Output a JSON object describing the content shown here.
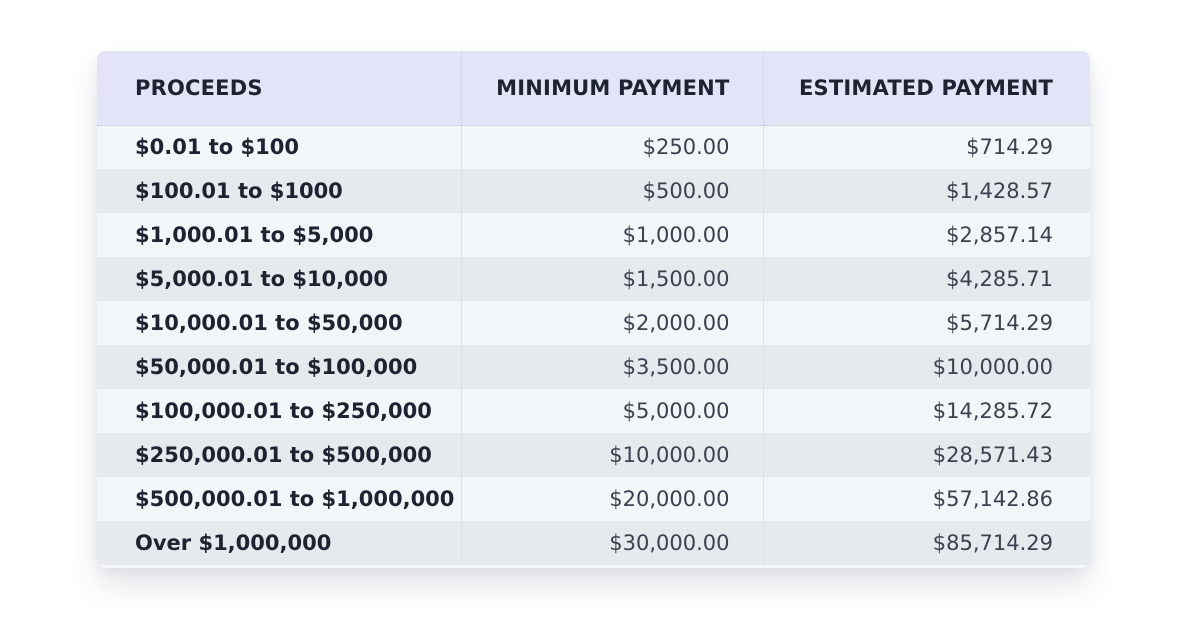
{
  "table": {
    "headers": {
      "proceeds": "PROCEEDS",
      "minimum": "MINIMUM PAYMENT",
      "estimated": "ESTIMATED PAYMENT"
    },
    "rows": [
      {
        "proceeds": "$0.01 to $100",
        "minimum": "$250.00",
        "estimated": "$714.29"
      },
      {
        "proceeds": "$100.01 to $1000",
        "minimum": "$500.00",
        "estimated": "$1,428.57"
      },
      {
        "proceeds": "$1,000.01 to $5,000",
        "minimum": "$1,000.00",
        "estimated": "$2,857.14"
      },
      {
        "proceeds": "$5,000.01 to $10,000",
        "minimum": "$1,500.00",
        "estimated": "$4,285.71"
      },
      {
        "proceeds": "$10,000.01 to $50,000",
        "minimum": "$2,000.00",
        "estimated": "$5,714.29"
      },
      {
        "proceeds": "$50,000.01 to $100,000",
        "minimum": "$3,500.00",
        "estimated": "$10,000.00"
      },
      {
        "proceeds": "$100,000.01 to $250,000",
        "minimum": "$5,000.00",
        "estimated": "$14,285.72"
      },
      {
        "proceeds": "$250,000.01 to $500,000",
        "minimum": "$10,000.00",
        "estimated": "$28,571.43"
      },
      {
        "proceeds": "$500,000.01 to $1,000,000",
        "minimum": "$20,000.00",
        "estimated": "$57,142.86"
      },
      {
        "proceeds": "Over $1,000,000",
        "minimum": "$30,000.00",
        "estimated": "$85,714.29"
      }
    ]
  },
  "colors": {
    "header_bg": "#e3e4f7",
    "row_light": "#f3f6f9",
    "row_dark": "#e6eaee",
    "text": "#1e2332"
  }
}
